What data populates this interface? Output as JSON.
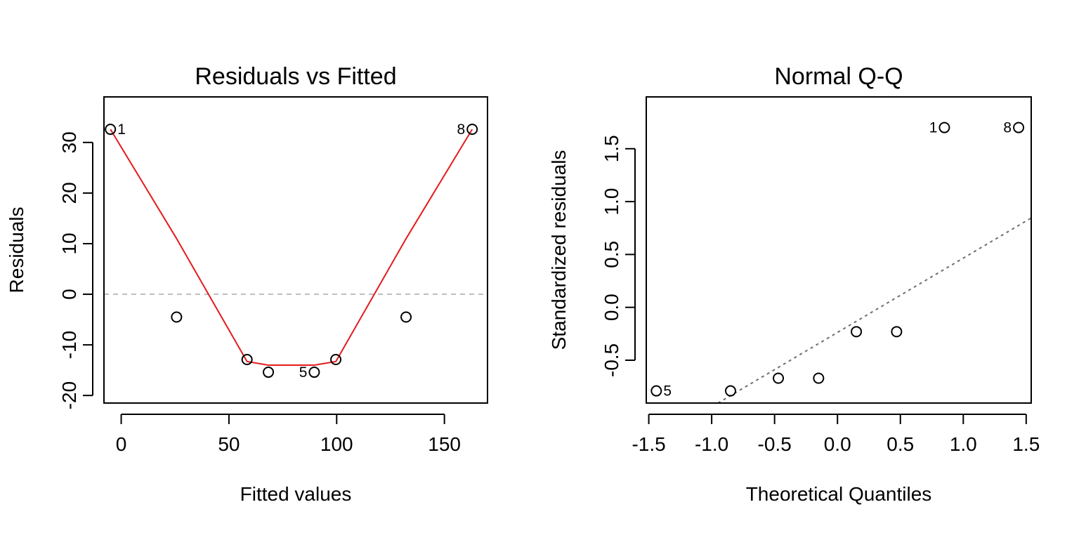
{
  "chart_data": [
    {
      "type": "scatter",
      "title": "Residuals vs Fitted",
      "xlabel": "Fitted values",
      "ylabel": "Residuals",
      "xlim": [
        -8,
        170
      ],
      "ylim": [
        -21.5,
        39
      ],
      "xticks": [
        0,
        50,
        100,
        150
      ],
      "xtick_labels": [
        "0",
        "50",
        "100",
        "150"
      ],
      "yticks": [
        -20,
        -10,
        0,
        10,
        20,
        30
      ],
      "ytick_labels": [
        "-20",
        "-10",
        "0",
        "10",
        "20",
        "30"
      ],
      "points": [
        {
          "x": -5,
          "y": 32.6,
          "label": "1",
          "label_side": "right"
        },
        {
          "x": 25.7,
          "y": -4.5,
          "label": ""
        },
        {
          "x": 58.4,
          "y": -12.9,
          "label": ""
        },
        {
          "x": 68.3,
          "y": -15.4,
          "label": ""
        },
        {
          "x": 89.6,
          "y": -15.4,
          "label": "5",
          "label_side": "left"
        },
        {
          "x": 99.6,
          "y": -12.9,
          "label": ""
        },
        {
          "x": 132.2,
          "y": -4.5,
          "label": ""
        },
        {
          "x": 162.9,
          "y": 32.6,
          "label": "8",
          "label_side": "left"
        }
      ],
      "smoother": {
        "color": "#e41a1c",
        "x": [
          -5,
          25.7,
          58.4,
          68.3,
          89.6,
          99.6,
          132.2,
          162.9
        ],
        "y": [
          32.6,
          11,
          -13.3,
          -14,
          -14,
          -13.3,
          11,
          32.6
        ]
      },
      "reference_line": {
        "y": 0,
        "style": "dashed",
        "color": "#bdbdbd"
      },
      "grid": false
    },
    {
      "type": "scatter",
      "title": "Normal Q-Q",
      "xlabel": "Theoretical Quantiles",
      "ylabel": "Standardized residuals",
      "xlim": [
        -1.52,
        1.54
      ],
      "ylim": [
        -0.905,
        1.99
      ],
      "xticks": [
        -1.5,
        -1.0,
        -0.5,
        0.0,
        0.5,
        1.0,
        1.5
      ],
      "xtick_labels": [
        "-1.5",
        "-1.0",
        "-0.5",
        "0.0",
        "0.5",
        "1.0",
        "1.5"
      ],
      "yticks": [
        -0.5,
        0.0,
        0.5,
        1.0,
        1.5
      ],
      "ytick_labels": [
        "-0.5",
        "0.0",
        "0.5",
        "1.0",
        "1.5"
      ],
      "points": [
        {
          "x": -1.44,
          "y": -0.79,
          "label": "5",
          "label_side": "right"
        },
        {
          "x": -0.85,
          "y": -0.79,
          "label": ""
        },
        {
          "x": -0.47,
          "y": -0.67,
          "label": ""
        },
        {
          "x": -0.15,
          "y": -0.67,
          "label": ""
        },
        {
          "x": 0.15,
          "y": -0.23,
          "label": ""
        },
        {
          "x": 0.47,
          "y": -0.23,
          "label": ""
        },
        {
          "x": 0.85,
          "y": 1.7,
          "label": "1",
          "label_side": "left"
        },
        {
          "x": 1.44,
          "y": 1.7,
          "label": "8",
          "label_side": "left"
        }
      ],
      "reference_line": {
        "x": [
          -0.95,
          1.54
        ],
        "y": [
          -0.905,
          0.845
        ],
        "style": "dotted",
        "color": "#6e6e6e"
      },
      "grid": false
    }
  ]
}
